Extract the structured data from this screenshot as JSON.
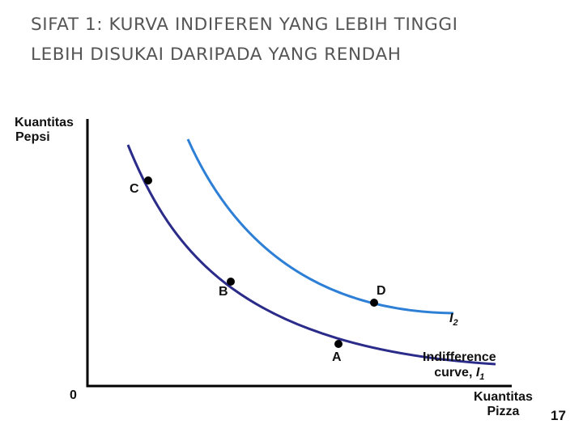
{
  "slide": {
    "title_line1": "SIFAT 1: KURVA INDIFEREN YANG LEBIH TINGGI",
    "title_line2": "LEBIH DISUKAI DARIPADA YANG RENDAH",
    "page_number": "17"
  },
  "diagram": {
    "y_axis_label_line1": "Kuantitas",
    "y_axis_label_line2": "Pepsi",
    "x_axis_label_line1": "Kuantitas",
    "x_axis_label_line2": "Pizza",
    "origin_label": "0",
    "points": {
      "A": "A",
      "B": "B",
      "C": "C",
      "D": "D"
    },
    "curves": {
      "i1_text": "Indifference",
      "i1_text2": "curve, ",
      "i1_letter": "I",
      "i1_subscript": "1",
      "i2_letter": "I",
      "i2_subscript": "2"
    },
    "colors": {
      "curve_i1": "#2b2b8a",
      "curve_i2": "#2e7fd6",
      "axes": "#000000",
      "points": "#000000"
    }
  }
}
